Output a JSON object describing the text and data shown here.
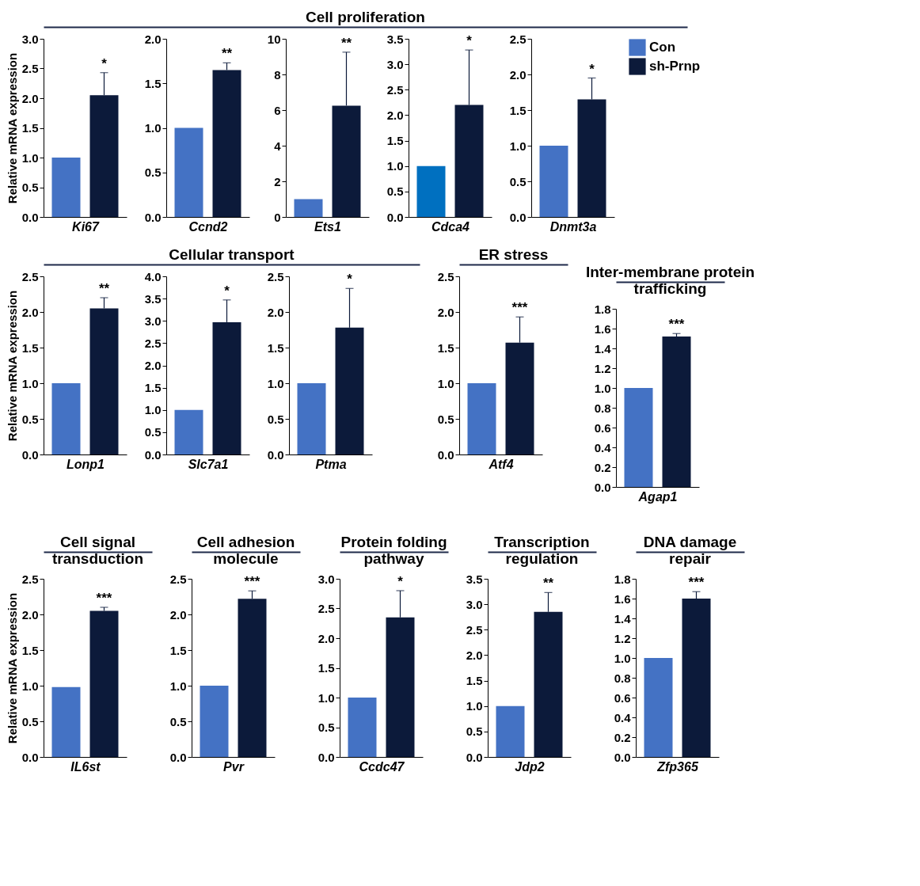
{
  "chart_data": [
    {
      "type": "other",
      "title": "Cell proliferation"
    },
    {
      "type": "bar",
      "xlabel": "Ki67",
      "ylabel": "Relative mRNA expression",
      "categories": [
        null
      ],
      "ylim": [
        0,
        3
      ],
      "yticks": [
        {
          "value": 0,
          "label": "0.0"
        },
        0.5,
        {
          "value": 1,
          "label": "1.0"
        },
        1.5,
        {
          "value": 2,
          "label": "2.0"
        },
        2.5,
        {
          "value": 3,
          "label": "3.0"
        }
      ],
      "series": [
        {
          "color": "#4472c4",
          "values": [
            1.0
          ]
        },
        {
          "color": "#0c1a3a",
          "values": [
            2.05
          ],
          "errors": [
            0.38
          ]
        }
      ],
      "annotations": [
        "*"
      ]
    },
    {
      "type": "bar",
      "xlabel": "Ccnd2",
      "categories": [
        null
      ],
      "ylim": [
        0,
        2
      ],
      "yticks": [
        {
          "value": 0,
          "label": "0.0"
        },
        0.5,
        {
          "value": 1,
          "label": "1.0"
        },
        1.5,
        {
          "value": 2,
          "label": "2.0"
        }
      ],
      "series": [
        {
          "color": "#4472c4",
          "values": [
            1.0
          ]
        },
        {
          "color": "#0c1a3a",
          "values": [
            1.65
          ],
          "errors": [
            0.08
          ]
        }
      ],
      "annotations": [
        "**"
      ]
    },
    {
      "type": "bar",
      "xlabel": "Ets1",
      "categories": [
        null
      ],
      "ylim": [
        0,
        10
      ],
      "yticks": [
        0,
        2,
        4,
        6,
        8,
        10
      ],
      "series": [
        {
          "color": "#4472c4",
          "values": [
            1.0
          ]
        },
        {
          "color": "#0c1a3a",
          "values": [
            6.25
          ],
          "errors": [
            3.0
          ]
        }
      ],
      "annotations": [
        "**"
      ]
    },
    {
      "type": "bar",
      "xlabel": "Cdca4",
      "categories": [
        null
      ],
      "ylim": [
        0,
        3.5
      ],
      "yticks": [
        {
          "value": 0,
          "label": "0.0"
        },
        0.5,
        {
          "value": 1,
          "label": "1.0"
        },
        1.5,
        {
          "value": 2,
          "label": "2.0"
        },
        2.5,
        {
          "value": 3,
          "label": "3.0"
        },
        3.5
      ],
      "series": [
        {
          "color": "#0070c0",
          "values": [
            1.0
          ]
        },
        {
          "color": "#0c1a3a",
          "values": [
            2.2
          ],
          "errors": [
            1.08
          ]
        }
      ],
      "annotations": [
        "*"
      ]
    },
    {
      "type": "bar",
      "xlabel": "Dnmt3a",
      "categories": [
        null
      ],
      "ylim": [
        0,
        2.5
      ],
      "yticks": [
        {
          "value": 0,
          "label": "0.0"
        },
        0.5,
        {
          "value": 1,
          "label": "1.0"
        },
        1.5,
        {
          "value": 2,
          "label": "2.0"
        },
        2.5
      ],
      "legend": "right",
      "series": [
        {
          "name": "Con",
          "color": "#4472c4",
          "values": [
            1.0
          ]
        },
        {
          "name": "sh-Prnp",
          "color": "#0c1a3a",
          "values": [
            1.65
          ],
          "errors": [
            0.3
          ]
        }
      ],
      "annotations": [
        "*"
      ]
    },
    {
      "type": "other",
      "title": "Cellular transport"
    },
    {
      "type": "bar",
      "xlabel": "Lonp1",
      "ylabel": "Relative mRNA expression",
      "categories": [
        null
      ],
      "ylim": [
        0,
        2.5
      ],
      "yticks": [
        {
          "value": 0,
          "label": "0.0"
        },
        0.5,
        {
          "value": 1,
          "label": "1.0"
        },
        1.5,
        {
          "value": 2,
          "label": "2.0"
        },
        2.5
      ],
      "series": [
        {
          "color": "#4472c4",
          "values": [
            1.0
          ]
        },
        {
          "color": "#0c1a3a",
          "values": [
            2.05
          ],
          "errors": [
            0.15
          ]
        }
      ],
      "annotations": [
        "**"
      ]
    },
    {
      "type": "bar",
      "xlabel": "Slc7a1",
      "categories": [
        null
      ],
      "ylim": [
        0,
        4
      ],
      "yticks": [
        {
          "value": 0,
          "label": "0.0"
        },
        0.5,
        {
          "value": 1,
          "label": "1.0"
        },
        1.5,
        {
          "value": 2,
          "label": "2.0"
        },
        2.5,
        {
          "value": 3,
          "label": "3.0"
        },
        3.5,
        {
          "value": 4,
          "label": "4.0"
        }
      ],
      "series": [
        {
          "color": "#4472c4",
          "values": [
            1.0
          ]
        },
        {
          "color": "#0c1a3a",
          "values": [
            2.97
          ],
          "errors": [
            0.5
          ]
        }
      ],
      "annotations": [
        "*"
      ]
    },
    {
      "type": "bar",
      "xlabel": "Ptma",
      "categories": [
        null
      ],
      "ylim": [
        0,
        2.5
      ],
      "yticks": [
        {
          "value": 0,
          "label": "0.0"
        },
        0.5,
        {
          "value": 1,
          "label": "1.0"
        },
        1.5,
        {
          "value": 2,
          "label": "2.0"
        },
        2.5
      ],
      "series": [
        {
          "color": "#4472c4",
          "values": [
            1.0
          ]
        },
        {
          "color": "#0c1a3a",
          "values": [
            1.78
          ],
          "errors": [
            0.55
          ]
        }
      ],
      "annotations": [
        "*"
      ]
    },
    {
      "type": "other",
      "title": "ER stress"
    },
    {
      "type": "bar",
      "xlabel": "Atf4",
      "categories": [
        null
      ],
      "ylim": [
        0,
        2.5
      ],
      "yticks": [
        {
          "value": 0,
          "label": "0.0"
        },
        0.5,
        {
          "value": 1,
          "label": "1.0"
        },
        1.5,
        {
          "value": 2,
          "label": "2.0"
        },
        2.5
      ],
      "series": [
        {
          "color": "#4472c4",
          "values": [
            1.0
          ]
        },
        {
          "color": "#0c1a3a",
          "values": [
            1.57
          ],
          "errors": [
            0.36
          ]
        }
      ],
      "annotations": [
        "***"
      ]
    },
    {
      "type": "other",
      "title": "Inter-membrane protein\ntrafficking"
    },
    {
      "type": "bar",
      "xlabel": "Agap1",
      "categories": [
        null
      ],
      "ylim": [
        0,
        1.8
      ],
      "yticks": [
        {
          "value": 0,
          "label": "0.0"
        },
        0.2,
        0.4,
        0.6,
        0.8,
        {
          "value": 1,
          "label": "1.0"
        },
        1.2,
        1.4,
        1.6,
        1.8
      ],
      "series": [
        {
          "color": "#4472c4",
          "values": [
            1.0
          ]
        },
        {
          "color": "#0c1a3a",
          "values": [
            1.52
          ],
          "errors": [
            0.03
          ]
        }
      ],
      "annotations": [
        "***"
      ]
    },
    {
      "type": "other",
      "title": "Cell signal\ntransduction"
    },
    {
      "type": "bar",
      "xlabel": "IL6st",
      "ylabel": "Relative mRNA expression",
      "categories": [
        null
      ],
      "ylim": [
        0,
        2.5
      ],
      "yticks": [
        {
          "value": 0,
          "label": "0.0"
        },
        0.5,
        {
          "value": 1,
          "label": "1.0"
        },
        1.5,
        {
          "value": 2,
          "label": "2.0"
        },
        2.5
      ],
      "series": [
        {
          "color": "#4472c4",
          "values": [
            0.98
          ]
        },
        {
          "color": "#0c1a3a",
          "values": [
            2.05
          ],
          "errors": [
            0.05
          ]
        }
      ],
      "annotations": [
        "***"
      ]
    },
    {
      "type": "other",
      "title": "Cell adhesion\nmolecule"
    },
    {
      "type": "bar",
      "xlabel": "Pvr",
      "categories": [
        null
      ],
      "ylim": [
        0,
        2.5
      ],
      "yticks": [
        {
          "value": 0,
          "label": "0.0"
        },
        0.5,
        {
          "value": 1,
          "label": "1.0"
        },
        1.5,
        {
          "value": 2,
          "label": "2.0"
        },
        2.5
      ],
      "series": [
        {
          "color": "#4472c4",
          "values": [
            1.0
          ]
        },
        {
          "color": "#0c1a3a",
          "values": [
            2.22
          ],
          "errors": [
            0.11
          ]
        }
      ],
      "annotations": [
        "***"
      ]
    },
    {
      "type": "other",
      "title": "Protein folding\npathway"
    },
    {
      "type": "bar",
      "xlabel": "Ccdc47",
      "categories": [
        null
      ],
      "ylim": [
        0,
        3
      ],
      "yticks": [
        {
          "value": 0,
          "label": "0.0"
        },
        0.5,
        {
          "value": 1,
          "label": "1.0"
        },
        1.5,
        {
          "value": 2,
          "label": "2.0"
        },
        2.5,
        {
          "value": 3,
          "label": "3.0"
        }
      ],
      "series": [
        {
          "color": "#4472c4",
          "values": [
            1.0
          ]
        },
        {
          "color": "#0c1a3a",
          "values": [
            2.35
          ],
          "errors": [
            0.45
          ]
        }
      ],
      "annotations": [
        "*"
      ]
    },
    {
      "type": "other",
      "title": "Transcription\nregulation"
    },
    {
      "type": "bar",
      "xlabel": "Jdp2",
      "categories": [
        null
      ],
      "ylim": [
        0,
        3.5
      ],
      "yticks": [
        {
          "value": 0,
          "label": "0.0"
        },
        0.5,
        {
          "value": 1,
          "label": "1.0"
        },
        1.5,
        {
          "value": 2,
          "label": "2.0"
        },
        2.5,
        {
          "value": 3,
          "label": "3.0"
        },
        3.5
      ],
      "series": [
        {
          "color": "#4472c4",
          "values": [
            1.0
          ]
        },
        {
          "color": "#0c1a3a",
          "values": [
            2.85
          ],
          "errors": [
            0.38
          ]
        }
      ],
      "annotations": [
        "**"
      ]
    },
    {
      "type": "other",
      "title": "DNA damage\nrepair"
    },
    {
      "type": "bar",
      "xlabel": "Zfp365",
      "categories": [
        null
      ],
      "ylim": [
        0,
        1.8
      ],
      "yticks": [
        {
          "value": 0,
          "label": "0.0"
        },
        0.2,
        0.4,
        0.6,
        0.8,
        {
          "value": 1,
          "label": "1.0"
        },
        1.2,
        1.4,
        1.6,
        1.8
      ],
      "series": [
        {
          "color": "#4472c4",
          "values": [
            1.0
          ]
        },
        {
          "color": "#0c1a3a",
          "values": [
            1.6
          ],
          "errors": [
            0.07
          ]
        }
      ],
      "annotations": [
        "***"
      ]
    }
  ]
}
